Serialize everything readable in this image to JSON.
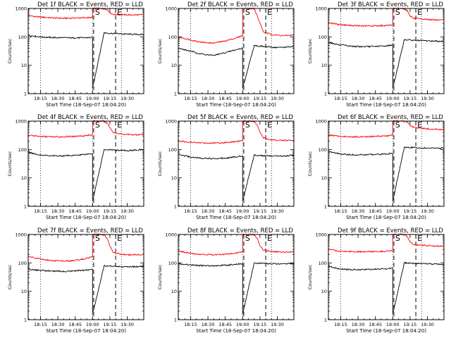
{
  "figure": {
    "ylabel": "Counts/sec",
    "xlabel": "Start Time (18-Sep-07 18:04:20)",
    "colors": {
      "events": "#000000",
      "lld": "#ff0000",
      "axes": "#000000",
      "background": "#ffffff"
    }
  },
  "chart_data": [
    {
      "type": "line",
      "title": "Det 1f BLACK = Events, RED = LLD",
      "yscale": "log",
      "ylim": [
        1,
        1000
      ],
      "yticks": [
        "1",
        "10",
        "100",
        "1000"
      ],
      "xlim": [
        "18:04:20",
        "19:44:20"
      ],
      "xticks": [
        "18:15",
        "18:30",
        "18:45",
        "19:00",
        "19:15",
        "19:30"
      ],
      "markers": [
        {
          "label": "S",
          "time": "19:01"
        },
        {
          "label": "E",
          "time": "19:20"
        }
      ],
      "dotted_lines": [
        "18:15",
        "19:00",
        "19:25"
      ],
      "dashed_lines": [
        "19:01",
        "19:20"
      ],
      "gap": [
        "19:01",
        "19:10"
      ],
      "series": [
        {
          "name": "LLD",
          "color": "#ff0000",
          "x": [
            "18:04",
            "18:14",
            "18:24",
            "18:34",
            "18:44",
            "18:54",
            "19:00",
            "19:00",
            "19:10",
            "19:13",
            "19:15",
            "19:18",
            "19:25",
            "19:35",
            "19:44"
          ],
          "y": [
            560,
            500,
            470,
            450,
            460,
            470,
            480,
            1000,
            1000,
            900,
            700,
            620,
            600,
            590,
            600
          ]
        },
        {
          "name": "Events",
          "color": "#000000",
          "x": [
            "18:04",
            "18:14",
            "18:24",
            "18:34",
            "18:44",
            "18:54",
            "19:00",
            "19:00",
            "19:10",
            "19:13",
            "19:20",
            "19:30",
            "19:44"
          ],
          "y": [
            115,
            100,
            95,
            93,
            92,
            93,
            95,
            1.5,
            140,
            135,
            130,
            125,
            120
          ]
        }
      ]
    },
    {
      "type": "line",
      "title": "Det 2f BLACK = Events, RED = LLD",
      "yscale": "log",
      "ylim": [
        1,
        1000
      ],
      "yticks": [
        "1",
        "10",
        "100",
        "1000"
      ],
      "xlim": [
        "18:04:20",
        "19:44:20"
      ],
      "xticks": [
        "18:15",
        "18:30",
        "18:45",
        "19:00",
        "19:15",
        "19:30"
      ],
      "markers": [
        {
          "label": "S",
          "time": "19:01"
        },
        {
          "label": "E",
          "time": "19:20"
        }
      ],
      "dotted_lines": [
        "18:15",
        "19:00",
        "19:25"
      ],
      "dashed_lines": [
        "19:01",
        "19:20"
      ],
      "gap": [
        "19:01",
        "19:10"
      ],
      "series": [
        {
          "name": "LLD",
          "color": "#ff0000",
          "x": [
            "18:04",
            "18:14",
            "18:24",
            "18:34",
            "18:44",
            "18:54",
            "19:00",
            "19:00",
            "19:10",
            "19:13",
            "19:15",
            "19:18",
            "19:25",
            "19:35",
            "19:44"
          ],
          "y": [
            100,
            80,
            65,
            60,
            70,
            90,
            110,
            1000,
            1000,
            500,
            300,
            150,
            120,
            110,
            115
          ]
        },
        {
          "name": "Events",
          "color": "#000000",
          "x": [
            "18:04",
            "18:14",
            "18:24",
            "18:34",
            "18:44",
            "18:54",
            "19:00",
            "19:00",
            "19:10",
            "19:13",
            "19:20",
            "19:30",
            "19:44"
          ],
          "y": [
            40,
            32,
            25,
            22,
            27,
            35,
            40,
            1.5,
            50,
            48,
            45,
            42,
            45
          ]
        }
      ]
    },
    {
      "type": "line",
      "title": "Det 3f BLACK = Events, RED = LLD",
      "yscale": "log",
      "ylim": [
        1,
        1000
      ],
      "yticks": [
        "1",
        "10",
        "100",
        "1000"
      ],
      "xlim": [
        "18:04:20",
        "19:44:20"
      ],
      "xticks": [
        "18:15",
        "18:30",
        "18:45",
        "19:00",
        "19:15",
        "19:30"
      ],
      "markers": [
        {
          "label": "S",
          "time": "19:01"
        },
        {
          "label": "E",
          "time": "19:20"
        }
      ],
      "dotted_lines": [
        "18:15",
        "19:00",
        "19:25"
      ],
      "dashed_lines": [
        "19:01",
        "19:20"
      ],
      "gap": [
        "19:01",
        "19:10"
      ],
      "series": [
        {
          "name": "LLD",
          "color": "#ff0000",
          "x": [
            "18:04",
            "18:14",
            "18:24",
            "18:34",
            "18:44",
            "18:54",
            "19:00",
            "19:00",
            "19:10",
            "19:13",
            "19:15",
            "19:18",
            "19:25",
            "19:35",
            "19:44"
          ],
          "y": [
            320,
            270,
            250,
            240,
            245,
            250,
            260,
            1000,
            1000,
            800,
            550,
            450,
            420,
            400,
            390
          ]
        },
        {
          "name": "Events",
          "color": "#000000",
          "x": [
            "18:04",
            "18:14",
            "18:24",
            "18:34",
            "18:44",
            "18:54",
            "19:00",
            "19:00",
            "19:10",
            "19:13",
            "19:20",
            "19:30",
            "19:44"
          ],
          "y": [
            65,
            52,
            47,
            45,
            46,
            48,
            52,
            1.5,
            80,
            78,
            75,
            72,
            70
          ]
        }
      ]
    },
    {
      "type": "line",
      "title": "Det 4f BLACK = Events, RED = LLD",
      "yscale": "log",
      "ylim": [
        1,
        1000
      ],
      "yticks": [
        "1",
        "10",
        "100",
        "1000"
      ],
      "xlim": [
        "18:04:20",
        "19:44:20"
      ],
      "xticks": [
        "18:15",
        "18:30",
        "18:45",
        "19:00",
        "19:15",
        "19:30"
      ],
      "markers": [
        {
          "label": "S",
          "time": "19:01"
        },
        {
          "label": "E",
          "time": "19:20"
        }
      ],
      "dotted_lines": [
        "18:15",
        "19:00",
        "19:25"
      ],
      "dashed_lines": [
        "19:01",
        "19:20"
      ],
      "gap": [
        "19:01",
        "19:10"
      ],
      "series": [
        {
          "name": "LLD",
          "color": "#ff0000",
          "x": [
            "18:04",
            "18:14",
            "18:24",
            "18:34",
            "18:44",
            "18:54",
            "19:00",
            "19:00",
            "19:10",
            "19:13",
            "19:15",
            "19:18",
            "19:25",
            "19:35",
            "19:44"
          ],
          "y": [
            320,
            290,
            280,
            280,
            290,
            310,
            330,
            1000,
            1000,
            800,
            600,
            400,
            350,
            330,
            340
          ]
        },
        {
          "name": "Events",
          "color": "#000000",
          "x": [
            "18:04",
            "18:14",
            "18:24",
            "18:34",
            "18:44",
            "18:54",
            "19:00",
            "19:00",
            "19:10",
            "19:13",
            "19:20",
            "19:30",
            "19:44"
          ],
          "y": [
            80,
            65,
            60,
            60,
            62,
            68,
            72,
            1.5,
            100,
            98,
            95,
            92,
            100
          ]
        }
      ]
    },
    {
      "type": "line",
      "title": "Det 5f BLACK = Events, RED = LLD",
      "yscale": "log",
      "ylim": [
        1,
        1000
      ],
      "yticks": [
        "1",
        "10",
        "100",
        "1000"
      ],
      "xlim": [
        "18:04:20",
        "19:44:20"
      ],
      "xticks": [
        "18:15",
        "18:30",
        "18:45",
        "19:00",
        "19:15",
        "19:30"
      ],
      "markers": [
        {
          "label": "S",
          "time": "19:01"
        },
        {
          "label": "E",
          "time": "19:20"
        }
      ],
      "dotted_lines": [
        "18:15",
        "19:00",
        "19:25"
      ],
      "dashed_lines": [
        "19:01",
        "19:20"
      ],
      "gap": [
        "19:01",
        "19:10"
      ],
      "series": [
        {
          "name": "LLD",
          "color": "#ff0000",
          "x": [
            "18:04",
            "18:14",
            "18:24",
            "18:34",
            "18:44",
            "18:54",
            "19:00",
            "19:00",
            "19:10",
            "19:13",
            "19:15",
            "19:18",
            "19:25",
            "19:35",
            "19:44"
          ],
          "y": [
            200,
            180,
            170,
            170,
            175,
            190,
            210,
            1000,
            1000,
            700,
            400,
            250,
            220,
            210,
            215
          ]
        },
        {
          "name": "Events",
          "color": "#000000",
          "x": [
            "18:04",
            "18:14",
            "18:24",
            "18:34",
            "18:44",
            "18:54",
            "19:00",
            "19:00",
            "19:10",
            "19:13",
            "19:20",
            "19:30",
            "19:44"
          ],
          "y": [
            70,
            55,
            50,
            48,
            50,
            55,
            60,
            1.5,
            65,
            62,
            60,
            58,
            62
          ]
        }
      ]
    },
    {
      "type": "line",
      "title": "Det 6f BLACK = Events, RED = LLD",
      "yscale": "log",
      "ylim": [
        1,
        1000
      ],
      "yticks": [
        "1",
        "10",
        "100",
        "1000"
      ],
      "xlim": [
        "18:04:20",
        "19:44:20"
      ],
      "xticks": [
        "18:15",
        "18:30",
        "18:45",
        "19:00",
        "19:15",
        "19:30"
      ],
      "markers": [
        {
          "label": "S",
          "time": "19:01"
        },
        {
          "label": "E",
          "time": "19:20"
        }
      ],
      "dotted_lines": [
        "18:15",
        "19:00",
        "19:25"
      ],
      "dashed_lines": [
        "19:01",
        "19:20"
      ],
      "gap": [
        "19:01",
        "19:10"
      ],
      "series": [
        {
          "name": "LLD",
          "color": "#ff0000",
          "x": [
            "18:04",
            "18:14",
            "18:24",
            "18:34",
            "18:44",
            "18:54",
            "19:00",
            "19:00",
            "19:10",
            "19:13",
            "19:15",
            "19:18",
            "19:25",
            "19:35",
            "19:44"
          ],
          "y": [
            330,
            290,
            280,
            280,
            290,
            300,
            320,
            1000,
            1000,
            900,
            700,
            600,
            560,
            520,
            500
          ]
        },
        {
          "name": "Events",
          "color": "#000000",
          "x": [
            "18:04",
            "18:14",
            "18:24",
            "18:34",
            "18:44",
            "18:54",
            "19:00",
            "19:00",
            "19:10",
            "19:13",
            "19:20",
            "19:30",
            "19:44"
          ],
          "y": [
            85,
            70,
            65,
            65,
            67,
            70,
            72,
            1.5,
            120,
            118,
            115,
            112,
            110
          ]
        }
      ]
    },
    {
      "type": "line",
      "title": "Det 7f BLACK = Events, RED = LLD",
      "yscale": "log",
      "ylim": [
        1,
        1000
      ],
      "yticks": [
        "1",
        "10",
        "100",
        "1000"
      ],
      "xlim": [
        "18:04:20",
        "19:44:20"
      ],
      "xticks": [
        "18:15",
        "18:30",
        "18:45",
        "19:00",
        "19:15",
        "19:30"
      ],
      "markers": [
        {
          "label": "S",
          "time": "19:01"
        },
        {
          "label": "E",
          "time": "19:20"
        }
      ],
      "dotted_lines": [
        "18:15",
        "19:00",
        "19:25"
      ],
      "dashed_lines": [
        "19:01",
        "19:20"
      ],
      "gap": [
        "19:01",
        "19:10"
      ],
      "series": [
        {
          "name": "LLD",
          "color": "#ff0000",
          "x": [
            "18:04",
            "18:14",
            "18:24",
            "18:34",
            "18:44",
            "18:54",
            "19:00",
            "19:00",
            "19:10",
            "19:13",
            "19:15",
            "19:18",
            "19:25",
            "19:35",
            "19:44"
          ],
          "y": [
            170,
            140,
            120,
            115,
            120,
            140,
            170,
            1000,
            1000,
            700,
            400,
            230,
            200,
            190,
            200
          ]
        },
        {
          "name": "Events",
          "color": "#000000",
          "x": [
            "18:04",
            "18:14",
            "18:24",
            "18:34",
            "18:44",
            "18:54",
            "19:00",
            "19:00",
            "19:10",
            "19:13",
            "19:20",
            "19:30",
            "19:44"
          ],
          "y": [
            60,
            55,
            52,
            50,
            52,
            55,
            60,
            1.5,
            80,
            78,
            75,
            72,
            75
          ]
        }
      ]
    },
    {
      "type": "line",
      "title": "Det 8f BLACK = Events, RED = LLD",
      "yscale": "log",
      "ylim": [
        1,
        1000
      ],
      "yticks": [
        "1",
        "10",
        "100",
        "1000"
      ],
      "xlim": [
        "18:04:20",
        "19:44:20"
      ],
      "xticks": [
        "18:15",
        "18:30",
        "18:45",
        "19:00",
        "19:15",
        "19:30"
      ],
      "markers": [
        {
          "label": "S",
          "time": "19:01"
        },
        {
          "label": "E",
          "time": "19:20"
        }
      ],
      "dotted_lines": [
        "18:15",
        "19:00",
        "19:25"
      ],
      "dashed_lines": [
        "19:01",
        "19:20"
      ],
      "gap": [
        "19:01",
        "19:10"
      ],
      "series": [
        {
          "name": "LLD",
          "color": "#ff0000",
          "x": [
            "18:04",
            "18:14",
            "18:24",
            "18:34",
            "18:44",
            "18:54",
            "19:00",
            "19:00",
            "19:10",
            "19:13",
            "19:15",
            "19:18",
            "19:25",
            "19:35",
            "19:44"
          ],
          "y": [
            260,
            220,
            200,
            195,
            200,
            220,
            250,
            1000,
            1000,
            700,
            400,
            280,
            250,
            240,
            250
          ]
        },
        {
          "name": "Events",
          "color": "#000000",
          "x": [
            "18:04",
            "18:14",
            "18:24",
            "18:34",
            "18:44",
            "18:54",
            "19:00",
            "19:00",
            "19:10",
            "19:13",
            "19:20",
            "19:30",
            "19:44"
          ],
          "y": [
            95,
            85,
            80,
            80,
            82,
            88,
            95,
            1.5,
            100,
            98,
            95,
            92,
            95
          ]
        }
      ]
    },
    {
      "type": "line",
      "title": "Det 9f BLACK = Events, RED = LLD",
      "yscale": "log",
      "ylim": [
        1,
        1000
      ],
      "yticks": [
        "1",
        "10",
        "100",
        "1000"
      ],
      "xlim": [
        "18:04:20",
        "19:44:20"
      ],
      "xticks": [
        "18:15",
        "18:30",
        "18:45",
        "19:00",
        "19:15",
        "19:30"
      ],
      "markers": [
        {
          "label": "S",
          "time": "19:01"
        },
        {
          "label": "E",
          "time": "19:20"
        }
      ],
      "dotted_lines": [
        "18:15",
        "19:00",
        "19:25"
      ],
      "dashed_lines": [
        "19:01",
        "19:20"
      ],
      "gap": [
        "19:01",
        "19:10"
      ],
      "series": [
        {
          "name": "LLD",
          "color": "#ff0000",
          "x": [
            "18:04",
            "18:14",
            "18:24",
            "18:34",
            "18:44",
            "18:54",
            "19:00",
            "19:00",
            "19:10",
            "19:13",
            "19:15",
            "19:18",
            "19:25",
            "19:35",
            "19:44"
          ],
          "y": [
            300,
            260,
            250,
            245,
            250,
            260,
            270,
            1000,
            1000,
            800,
            550,
            450,
            420,
            400,
            380
          ]
        },
        {
          "name": "Events",
          "color": "#000000",
          "x": [
            "18:04",
            "18:14",
            "18:24",
            "18:34",
            "18:44",
            "18:54",
            "19:00",
            "19:00",
            "19:10",
            "19:13",
            "19:20",
            "19:30",
            "19:44"
          ],
          "y": [
            75,
            62,
            58,
            58,
            60,
            62,
            65,
            1.5,
            100,
            98,
            95,
            92,
            90
          ]
        }
      ]
    }
  ]
}
